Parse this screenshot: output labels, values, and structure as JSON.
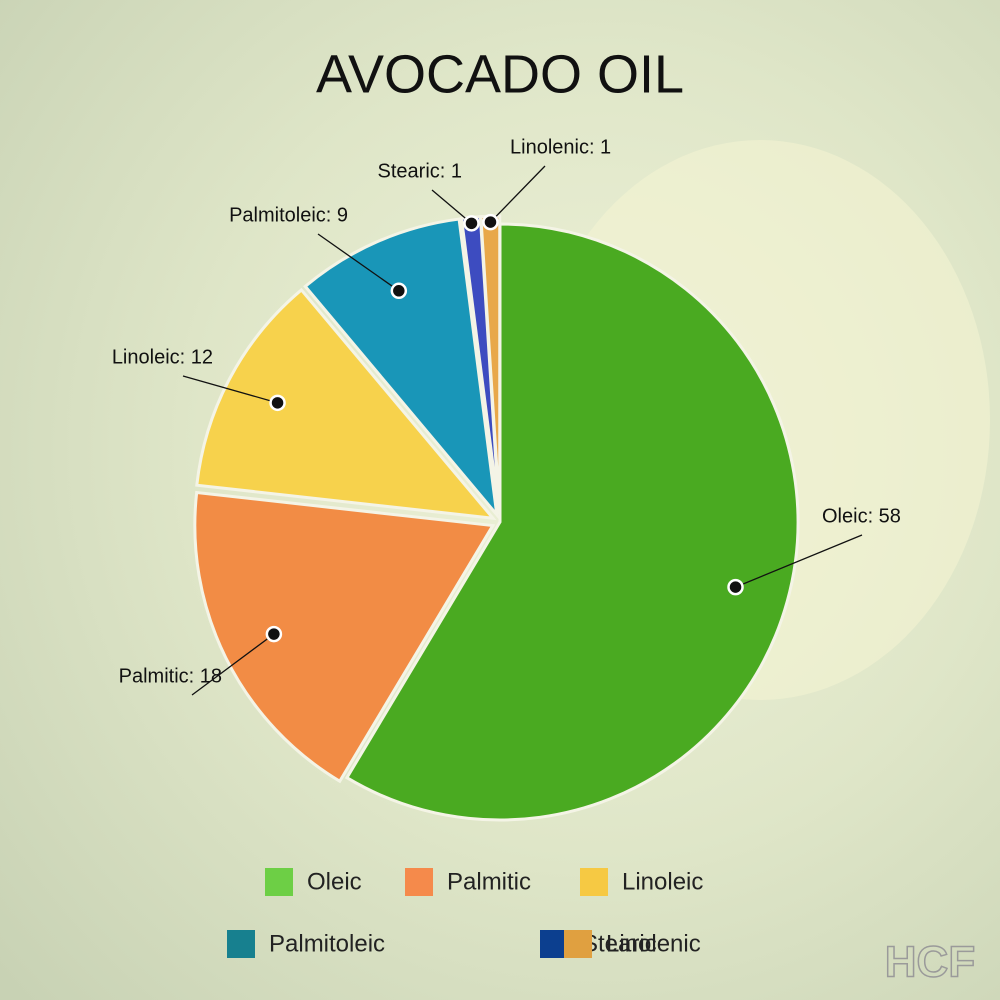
{
  "chart_data": {
    "type": "pie",
    "title": "AVOCADO OIL",
    "categories": [
      "Oleic",
      "Palmitic",
      "Linoleic",
      "Palmitoleic",
      "Stearic",
      "Linolenic"
    ],
    "values": [
      58,
      18,
      12,
      9,
      1,
      1
    ],
    "value_labels": [
      "Oleic: 58",
      "Palmitic: 18",
      "Linoleic: 12",
      "Palmitoleic: 9",
      "Stearic: 1",
      "Linolenic: 1"
    ],
    "colors": [
      "#4aaa21",
      "#f28c45",
      "#f7d24c",
      "#1996b8",
      "#3d4cc0",
      "#e8a84a"
    ],
    "legend_colors": [
      "#6dcf45",
      "#f58a4b",
      "#f6c943",
      "#17808f",
      "#0c3f8f",
      "#e0a040"
    ],
    "watermark": "HCF"
  }
}
